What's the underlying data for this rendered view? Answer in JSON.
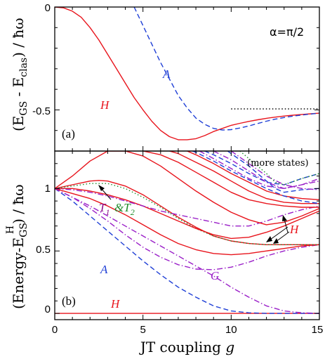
{
  "chart_data": [
    {
      "type": "line",
      "panel_label": "(a)",
      "annotation": "α=π/2",
      "xlim": [
        0,
        15
      ],
      "ylim": [
        -0.7,
        0
      ],
      "yticks": [
        0,
        -0.5
      ],
      "yticklabels": [
        "0",
        "-0.5"
      ],
      "ylabel": {
        "main": "(E",
        "sub1": "GS",
        "mid": " - E",
        "sub2": "clas",
        "tail": ") / ħω"
      },
      "series": [
        {
          "name": "H",
          "color": "#e8141c",
          "style": "solid",
          "x": [
            0,
            0.5,
            1,
            1.5,
            2,
            2.5,
            3,
            3.5,
            4,
            4.5,
            5,
            5.5,
            6,
            6.5,
            7,
            7.5,
            8,
            8.5,
            9,
            9.5,
            10,
            10.5,
            11,
            11.5,
            12,
            12.5,
            13,
            13.5,
            14,
            14.5,
            15
          ],
          "y": [
            0,
            -0.004,
            -0.02,
            -0.05,
            -0.1,
            -0.16,
            -0.23,
            -0.3,
            -0.37,
            -0.44,
            -0.5,
            -0.555,
            -0.6,
            -0.63,
            -0.645,
            -0.645,
            -0.64,
            -0.625,
            -0.605,
            -0.59,
            -0.575,
            -0.565,
            -0.556,
            -0.548,
            -0.541,
            -0.535,
            -0.53,
            -0.526,
            -0.522,
            -0.519,
            -0.516
          ]
        },
        {
          "name": "A",
          "color": "#1f3fd6",
          "style": "dashed",
          "x": [
            4.5,
            5,
            5.5,
            6,
            6.5,
            7,
            7.5,
            8,
            8.5,
            9,
            9.5,
            10,
            10.5,
            11,
            11.5,
            12,
            12.5,
            13,
            13.5,
            14,
            14.5,
            15
          ],
          "y": [
            0,
            -0.09,
            -0.18,
            -0.27,
            -0.35,
            -0.43,
            -0.49,
            -0.54,
            -0.57,
            -0.59,
            -0.598,
            -0.596,
            -0.588,
            -0.578,
            -0.566,
            -0.555,
            -0.545,
            -0.537,
            -0.53,
            -0.525,
            -0.52,
            -0.516
          ]
        },
        {
          "name": "",
          "color": "#000000",
          "style": "dotted",
          "x": [
            10,
            15
          ],
          "y": [
            -0.495,
            -0.495
          ]
        }
      ],
      "labels": [
        {
          "text": "H",
          "color": "#e8141c"
        },
        {
          "text": "A",
          "color": "#1f3fd6"
        }
      ]
    },
    {
      "type": "line",
      "panel_label": "(b)",
      "annotation": "(more states)",
      "xlim": [
        0,
        15
      ],
      "ylim": [
        -0.05,
        1.3
      ],
      "xticks": [
        0,
        5,
        10,
        15
      ],
      "xticklabels": [
        "0",
        "5",
        "10",
        "15"
      ],
      "yticks": [
        0,
        0.5,
        1
      ],
      "yticklabels": [
        "0",
        "0.5",
        "1"
      ],
      "xlabel": {
        "main": "JT coupling ",
        "var": "g"
      },
      "ylabel": {
        "main": "(Energy-E",
        "sub": "GS",
        "sup": "H",
        "tail": ") / ħω"
      },
      "series": [
        {
          "name": "H0",
          "color": "#e8141c",
          "style": "solid",
          "x": [
            0,
            15
          ],
          "y": [
            0,
            0
          ]
        },
        {
          "name": "A1",
          "color": "#1f3fd6",
          "style": "dashed",
          "x": [
            0,
            1,
            2,
            3,
            4,
            5,
            6,
            7,
            8,
            9,
            10,
            11,
            12,
            13,
            14,
            15
          ],
          "y": [
            1,
            0.9,
            0.78,
            0.66,
            0.54,
            0.42,
            0.31,
            0.21,
            0.13,
            0.06,
            0.02,
            0.005,
            0.0,
            0.0,
            0.0,
            0.0
          ]
        },
        {
          "name": "G1",
          "color": "#9a1fc8",
          "style": "dashdot",
          "x": [
            0,
            1,
            2,
            3,
            4,
            5,
            6,
            7,
            8,
            9,
            10,
            11,
            12,
            13,
            14,
            15
          ],
          "y": [
            1,
            0.93,
            0.86,
            0.78,
            0.7,
            0.62,
            0.54,
            0.46,
            0.38,
            0.3,
            0.21,
            0.13,
            0.06,
            0.02,
            0.005,
            0.0
          ]
        },
        {
          "name": "G2",
          "color": "#9a1fc8",
          "style": "dashdot",
          "x": [
            0,
            1,
            2,
            3,
            4,
            5,
            6,
            7,
            8,
            9,
            10,
            11,
            12,
            13,
            14,
            15
          ],
          "y": [
            1,
            0.93,
            0.84,
            0.74,
            0.63,
            0.53,
            0.45,
            0.39,
            0.355,
            0.35,
            0.37,
            0.41,
            0.46,
            0.5,
            0.53,
            0.55
          ]
        },
        {
          "name": "H1",
          "color": "#e8141c",
          "style": "solid",
          "x": [
            0,
            1,
            2,
            3,
            4,
            5,
            6,
            7,
            8,
            9,
            10,
            11,
            12,
            13,
            14,
            15
          ],
          "y": [
            1,
            0.96,
            0.92,
            0.86,
            0.79,
            0.71,
            0.63,
            0.56,
            0.51,
            0.48,
            0.47,
            0.48,
            0.5,
            0.52,
            0.54,
            0.55
          ]
        },
        {
          "name": "H2",
          "color": "#e8141c",
          "style": "solid",
          "x": [
            0,
            1,
            2,
            2.5,
            3,
            4,
            5,
            6,
            7,
            8,
            9,
            10,
            11,
            12,
            13,
            14,
            15
          ],
          "y": [
            1,
            1.03,
            1.06,
            1.065,
            1.06,
            1.02,
            0.95,
            0.86,
            0.77,
            0.69,
            0.62,
            0.58,
            0.56,
            0.55,
            0.55,
            0.55,
            0.55
          ]
        },
        {
          "name": "T1&T2",
          "color": "#1e8c2a",
          "style": "dotted",
          "x": [
            0,
            1,
            2,
            3,
            4,
            5,
            6,
            7,
            8,
            9,
            10,
            11,
            12,
            13,
            14,
            15
          ],
          "y": [
            1,
            1.02,
            1.04,
            1.04,
            1.0,
            0.93,
            0.85,
            0.76,
            0.68,
            0.62,
            0.58,
            0.56,
            0.55,
            0.55,
            0.55,
            0.55
          ]
        },
        {
          "name": "H3",
          "color": "#e8141c",
          "style": "solid",
          "x": [
            0,
            1,
            2,
            3,
            4,
            5,
            6,
            7,
            8,
            9,
            10,
            11,
            12,
            13,
            14,
            15
          ],
          "y": [
            1,
            1.0,
            0.98,
            0.95,
            0.91,
            0.86,
            0.8,
            0.74,
            0.68,
            0.63,
            0.6,
            0.61,
            0.65,
            0.7,
            0.76,
            0.82
          ]
        },
        {
          "name": "G3",
          "color": "#9a1fc8",
          "style": "dashdot",
          "x": [
            0,
            1,
            2,
            3,
            4,
            5,
            6,
            7,
            8,
            9,
            10,
            11,
            12,
            13,
            14,
            15
          ],
          "y": [
            1,
            0.99,
            0.97,
            0.94,
            0.9,
            0.86,
            0.82,
            0.79,
            0.76,
            0.73,
            0.7,
            0.7,
            0.74,
            0.79,
            0.83,
            0.86
          ]
        },
        {
          "name": "H4",
          "color": "#e8141c",
          "style": "solid",
          "x": [
            0,
            1,
            2,
            3,
            4,
            5,
            6,
            7,
            8,
            9,
            10,
            11,
            12,
            13,
            14,
            15
          ],
          "y": [
            1,
            1.1,
            1.22,
            1.3,
            1.3,
            1.26,
            1.18,
            1.08,
            0.98,
            0.89,
            0.81,
            0.75,
            0.71,
            0.73,
            0.78,
            0.84
          ]
        },
        {
          "name": "H5",
          "color": "#e8141c",
          "style": "solid",
          "x": [
            5,
            6,
            7,
            8,
            9,
            10,
            11,
            12,
            13,
            14,
            15
          ],
          "y": [
            1.3,
            1.27,
            1.21,
            1.13,
            1.05,
            0.97,
            0.91,
            0.88,
            0.86,
            0.85,
            0.85
          ]
        },
        {
          "name": "H6",
          "color": "#e8141c",
          "style": "solid",
          "x": [
            6.5,
            7,
            8,
            9,
            10,
            11,
            12,
            13,
            14,
            15
          ],
          "y": [
            1.3,
            1.28,
            1.21,
            1.14,
            1.06,
            0.98,
            0.92,
            0.89,
            0.88,
            0.88
          ]
        },
        {
          "name": "H7",
          "color": "#e8141c",
          "style": "solid",
          "x": [
            7.5,
            8,
            9,
            10,
            11,
            12,
            13,
            14,
            15
          ],
          "y": [
            1.3,
            1.27,
            1.2,
            1.12,
            1.05,
            0.98,
            0.94,
            0.92,
            0.91
          ]
        },
        {
          "name": "A2",
          "color": "#1f3fd6",
          "style": "dashed",
          "x": [
            7.8,
            8,
            9,
            10,
            11,
            12,
            13,
            14,
            15
          ],
          "y": [
            1.3,
            1.29,
            1.22,
            1.14,
            1.07,
            1.0,
            0.94,
            0.9,
            0.88
          ]
        },
        {
          "name": "A3",
          "color": "#1f3fd6",
          "style": "dashed",
          "x": [
            8.5,
            9,
            10,
            11,
            12,
            13,
            14,
            15
          ],
          "y": [
            1.3,
            1.27,
            1.2,
            1.12,
            1.05,
            1.03,
            1.08,
            1.12
          ]
        },
        {
          "name": "A4",
          "color": "#1f3fd6",
          "style": "dashed",
          "x": [
            9.8,
            10,
            11,
            12,
            12.5,
            13,
            14,
            15
          ],
          "y": [
            1.3,
            1.28,
            1.18,
            1.06,
            1.0,
            0.97,
            0.99,
            1.0
          ]
        },
        {
          "name": "G4",
          "color": "#9a1fc8",
          "style": "dashdot",
          "x": [
            8.2,
            9,
            10,
            11,
            12,
            13,
            14,
            15
          ],
          "y": [
            1.3,
            1.24,
            1.16,
            1.08,
            1.02,
            1.0,
            1.03,
            1.06
          ]
        },
        {
          "name": "G5",
          "color": "#9a1fc8",
          "style": "dashdot",
          "x": [
            9,
            10,
            11,
            12,
            13,
            14,
            15
          ],
          "y": [
            1.3,
            1.23,
            1.14,
            1.05,
            1.0,
            1.03,
            1.08
          ]
        },
        {
          "name": "G6",
          "color": "#9a1fc8",
          "style": "dashdot",
          "x": [
            10,
            11,
            12,
            13,
            14,
            15
          ],
          "y": [
            1.3,
            1.2,
            1.1,
            1.03,
            1.0,
            0.99
          ]
        },
        {
          "name": "T3",
          "color": "#1e8c2a",
          "style": "dotted",
          "x": [
            10.5,
            11,
            12,
            12.5,
            13,
            14,
            15
          ],
          "y": [
            1.3,
            1.24,
            1.12,
            1.05,
            1.03,
            1.08,
            1.12
          ]
        }
      ],
      "labels": [
        {
          "text": "T",
          "sub": "1",
          "color": "#8b0d8c"
        },
        {
          "text": "&T",
          "sub": "2",
          "color": "#1e8c2a"
        },
        {
          "text": "A",
          "color": "#1f3fd6"
        },
        {
          "text": "G",
          "color": "#9a1fc8"
        },
        {
          "text": "H",
          "color": "#e8141c"
        },
        {
          "text": "H",
          "color": "#e8141c"
        }
      ]
    }
  ]
}
